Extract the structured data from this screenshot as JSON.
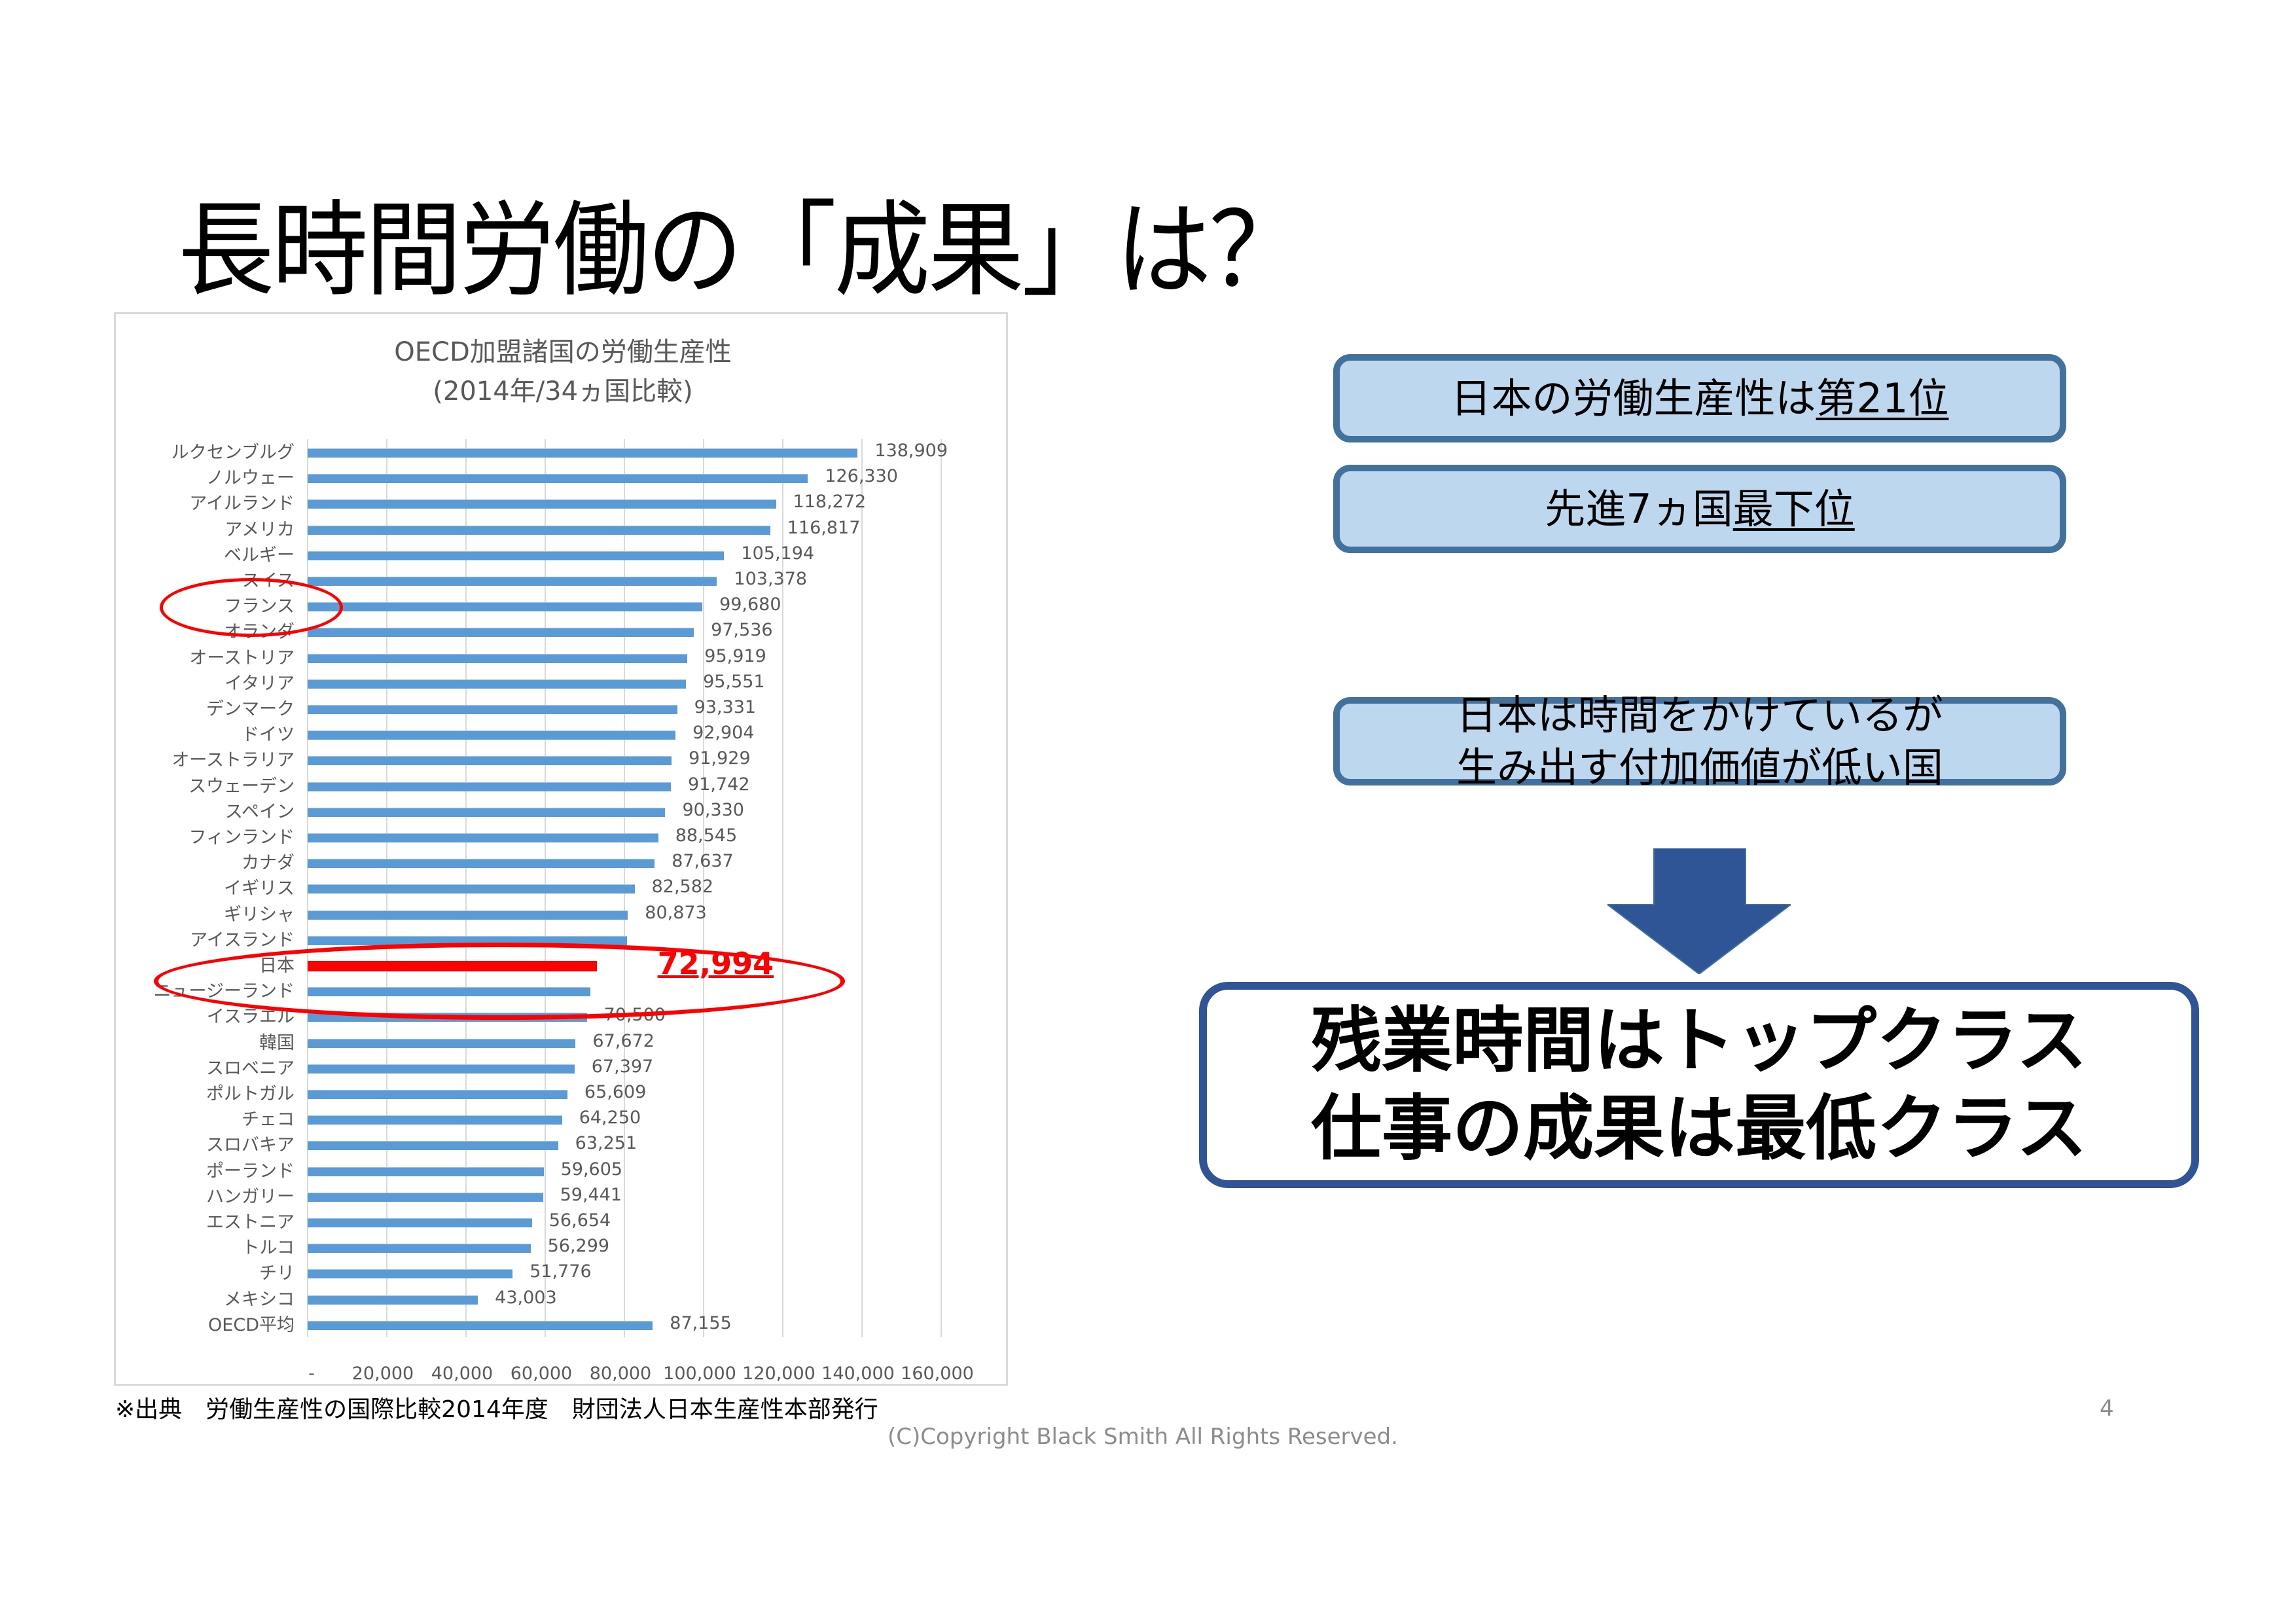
{
  "slide": {
    "title": "長時間労働の「成果」は？",
    "source_note": "※出典　労働生産性の国際比較2014年度　財団法人日本生産性本部発行",
    "copyright": "(C)Copyright Black Smith All Rights Reserved.",
    "page_number": "4"
  },
  "boxes": [
    {
      "prefix": "日本の労働生産性は",
      "emphasis": "第21位"
    },
    {
      "prefix": "先進7ヵ国",
      "emphasis": "最下位"
    },
    {
      "line1": "日本は時間をかけているが",
      "line2": "生み出す付加価値が低い国"
    }
  ],
  "conclusion": {
    "line1": "残業時間はトップクラス",
    "line2": "仕事の成果は最低クラス"
  },
  "colors": {
    "bar": "#5b9bd5",
    "highlight": "#ff0000",
    "box_fill": "#bdd7ee",
    "box_border": "#41719c",
    "arrow": "#2f5597",
    "conclusion_border": "#2f5597"
  },
  "chart_data": {
    "type": "bar",
    "orientation": "horizontal",
    "title": "OECD加盟諸国の労働生産性",
    "subtitle": "(2014年/34ヵ国比較)",
    "xlabel": "",
    "ylabel": "",
    "xlim": [
      0,
      160000
    ],
    "x_ticks": [
      "-",
      "20,000",
      "40,000",
      "60,000",
      "80,000",
      "100,000",
      "120,000",
      "140,000",
      "160,000"
    ],
    "grid": true,
    "legend": null,
    "highlight_category": "日本",
    "circled_categories": [
      "フランス",
      "日本"
    ],
    "categories": [
      "ルクセンブルグ",
      "ノルウェー",
      "アイルランド",
      "アメリカ",
      "ベルギー",
      "スイス",
      "フランス",
      "オランダ",
      "オーストリア",
      "イタリア",
      "デンマーク",
      "ドイツ",
      "オーストラリア",
      "スウェーデン",
      "スペイン",
      "フィンランド",
      "カナダ",
      "イギリス",
      "ギリシャ",
      "アイスランド",
      "日本",
      "ニュージーランド",
      "イスラエル",
      "韓国",
      "スロベニア",
      "ポルトガル",
      "チェコ",
      "スロバキア",
      "ポーランド",
      "ハンガリー",
      "エストニア",
      "トルコ",
      "チリ",
      "メキシコ",
      "OECD平均"
    ],
    "values": [
      138909,
      126330,
      118272,
      116817,
      105194,
      103378,
      99680,
      97536,
      95919,
      95551,
      93331,
      92904,
      91929,
      91742,
      90330,
      88545,
      87637,
      82582,
      80873,
      80600,
      72994,
      71400,
      70500,
      67672,
      67397,
      65609,
      64250,
      63251,
      59605,
      59441,
      56654,
      56299,
      51776,
      43003,
      87155
    ],
    "value_labels": [
      "138,909",
      "126,330",
      "118,272",
      "116,817",
      "105,194",
      "103,378",
      "99,680",
      "97,536",
      "95,919",
      "95,551",
      "93,331",
      "92,904",
      "91,929",
      "91,742",
      "90,330",
      "88,545",
      "87,637",
      "82,582",
      "80,873",
      "",
      "72,994",
      "",
      "70,500",
      "67,672",
      "67,397",
      "65,609",
      "64,250",
      "63,251",
      "59,605",
      "59,441",
      "56,654",
      "56,299",
      "51,776",
      "43,003",
      "87,155"
    ],
    "notes": "Values for アイスランド and ニュージーランド are hidden behind the red ellipse; estimated from bar length."
  }
}
